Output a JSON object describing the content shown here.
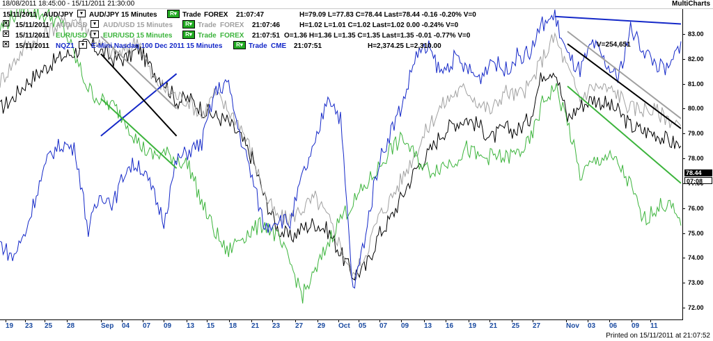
{
  "window": {
    "date_range": "18/08/2011 18:45:00 - 15/11/2011 21:30:00",
    "app_name": "MultiCharts"
  },
  "legend": [
    {
      "date": "15/11/2011",
      "symbol": "AUD/JPY",
      "desc": "AUD/JPY 15 Minutes",
      "trade": "Trade",
      "exchange": "FOREX",
      "time": "21:07:47",
      "stats": "H=79.09  L=77.83  C=78.44  Last=78.44  -0.16  -0.20%  V=0",
      "color": "#000000",
      "closable": false
    },
    {
      "date": "15/11/2011",
      "symbol": "AUD/USD",
      "desc": "AUD/USD 15 Minutes",
      "trade": "Trade",
      "exchange": "FOREX",
      "time": "21:07:46",
      "stats": "H=1.02  L=1.01  C=1.02  Last=1.02  0.00  -0.24%  V=0",
      "color": "#a0a0a0",
      "closable": true
    },
    {
      "date": "15/11/2011",
      "symbol": "EUR/USD",
      "desc": "EUR/USD 15 Minutes",
      "trade": "Trade",
      "exchange": "FOREX",
      "time": "21:07:51",
      "stats": "O=1.36  H=1.36  L=1.35  C=1.35  Last=1.35  -0.01  -0.77%  V=0",
      "color": "#3cb43c",
      "closable": true
    },
    {
      "date": "15/11/2011",
      "symbol": "NQZ1",
      "desc": "E-Mini Nasdaq 100 Dec 2011  15 Minutes",
      "trade": "Trade",
      "exchange": "CME",
      "time": "21:07:51",
      "stats": "H=2,374.25  L=2,310.00",
      "color": "#1428c8",
      "closable": true
    }
  ],
  "volume_label": "V=254,651",
  "y_axis": {
    "ticks": [
      "83.00",
      "82.00",
      "81.00",
      "80.00",
      "79.00",
      "78.00",
      "77.00",
      "76.00",
      "75.00",
      "74.00",
      "73.00",
      "72.00"
    ],
    "last_price": "78.44",
    "last_time": "07:08"
  },
  "x_axis": {
    "ticks": [
      "19",
      "23",
      "25",
      "28",
      "Sep",
      "04",
      "07",
      "09",
      "13",
      "15",
      "18",
      "21",
      "23",
      "27",
      "29",
      "Oct",
      "05",
      "07",
      "09",
      "13",
      "16",
      "19",
      "21",
      "25",
      "27",
      "Nov",
      "03",
      "06",
      "09",
      "11"
    ]
  },
  "footer": "Printed on 15/11/2011 at 21:07:52",
  "colors": {
    "audjpy": "#000000",
    "audusd": "#a0a0a0",
    "eurusd": "#3cb43c",
    "nq": "#1428c8",
    "trend_blue": "#1428c8",
    "trend_grey": "#a0a0a0",
    "trend_black": "#000000",
    "trend_green": "#3cb43c"
  },
  "chart_data": {
    "type": "line",
    "ylim": [
      71.5,
      84
    ],
    "series": [
      {
        "name": "AUD/JPY",
        "color": "#000000",
        "values": [
          80.0,
          80.4,
          81.0,
          81.4,
          81.8,
          82.1,
          82.3,
          82.6,
          82.3,
          82.0,
          82.0,
          82.4,
          81.6,
          81.1,
          80.3,
          80.4,
          80.0,
          79.7,
          79.5,
          78.9,
          78.0,
          76.4,
          75.2,
          74.8,
          75.2,
          75.4,
          75.1,
          74.2,
          73.3,
          73.6,
          74.9,
          75.6,
          76.6,
          77.6,
          78.2,
          79.0,
          79.4,
          79.6,
          79.3,
          78.8,
          79.2,
          79.1,
          79.6,
          81.4,
          81.6,
          79.6,
          80.1,
          80.4,
          80.2,
          79.9,
          79.3,
          79.1,
          79.0,
          78.7,
          78.5
        ]
      },
      {
        "name": "AUD/USD",
        "color": "#a0a0a0",
        "values": [
          81.1,
          81.8,
          82.5,
          82.8,
          83.2,
          83.4,
          83.6,
          83.2,
          82.5,
          82.2,
          82.3,
          82.8,
          81.3,
          80.8,
          80.5,
          80.3,
          79.7,
          80.6,
          80.0,
          79.4,
          78.2,
          76.5,
          75.6,
          75.6,
          76.0,
          76.4,
          75.6,
          74.5,
          73.2,
          74.2,
          75.6,
          76.4,
          77.3,
          78.3,
          79.3,
          80.1,
          80.6,
          80.8,
          80.2,
          79.9,
          80.7,
          80.5,
          80.9,
          82.0,
          82.9,
          81.6,
          80.4,
          80.9,
          80.8,
          80.6,
          80.0,
          80.0,
          79.9,
          79.6,
          79.3
        ]
      },
      {
        "name": "EUR/USD",
        "color": "#3cb43c",
        "values": [
          83.2,
          83.7,
          84.1,
          83.8,
          83.7,
          83.3,
          82.0,
          80.8,
          80.3,
          80.1,
          79.5,
          78.6,
          78.1,
          78.2,
          78.0,
          77.7,
          76.2,
          75.1,
          74.2,
          74.8,
          75.1,
          75.4,
          74.8,
          73.8,
          72.5,
          73.4,
          74.6,
          75.6,
          76.2,
          76.9,
          77.6,
          78.4,
          78.8,
          78.0,
          77.5,
          77.7,
          77.9,
          78.4,
          78.0,
          78.1,
          78.0,
          78.2,
          78.6,
          80.2,
          80.9,
          79.5,
          77.3,
          77.8,
          78.1,
          77.8,
          76.9,
          75.5,
          76.0,
          76.2,
          75.3
        ]
      },
      {
        "name": "NQZ1",
        "color": "#1428c8",
        "values": [
          74.6,
          74.0,
          75.0,
          76.8,
          78.2,
          78.6,
          78.3,
          75.1,
          76.6,
          76.2,
          77.6,
          77.8,
          76.8,
          75.5,
          77.9,
          78.3,
          78.6,
          80.6,
          81.1,
          79.0,
          77.2,
          75.2,
          75.6,
          75.4,
          77.3,
          78.5,
          80.6,
          79.6,
          72.6,
          75.0,
          77.8,
          79.1,
          80.3,
          82.2,
          82.4,
          81.4,
          82.0,
          81.6,
          81.2,
          82.0,
          81.5,
          82.1,
          82.2,
          83.4,
          83.7,
          82.1,
          81.5,
          82.6,
          81.8,
          81.2,
          83.2,
          82.4,
          81.8,
          81.5,
          82.7
        ]
      }
    ],
    "trendlines": [
      {
        "color": "#1428c8",
        "from": [
          8,
          78.9
        ],
        "to": [
          14,
          81.4
        ]
      },
      {
        "color": "#a0a0a0",
        "from": [
          8,
          82.9
        ],
        "to": [
          14,
          80.0
        ]
      },
      {
        "color": "#000000",
        "from": [
          8,
          82.2
        ],
        "to": [
          14,
          78.9
        ]
      },
      {
        "color": "#3cb43c",
        "from": [
          8,
          80.4
        ],
        "to": [
          14,
          77.6
        ]
      },
      {
        "color": "#1428c8",
        "from": [
          44,
          83.7
        ],
        "to": [
          54,
          83.4
        ]
      },
      {
        "color": "#a0a0a0",
        "from": [
          45,
          83.1
        ],
        "to": [
          54,
          79.6
        ]
      },
      {
        "color": "#000000",
        "from": [
          45,
          82.6
        ],
        "to": [
          54,
          79.2
        ]
      },
      {
        "color": "#3cb43c",
        "from": [
          45,
          80.9
        ],
        "to": [
          54,
          77.0
        ]
      }
    ]
  }
}
